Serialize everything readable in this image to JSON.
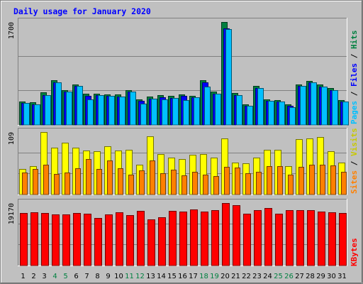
{
  "chart_data": {
    "type": "bar",
    "title": "Daily usage for January 2020",
    "categories": [
      "1",
      "2",
      "3",
      "4",
      "5",
      "6",
      "7",
      "8",
      "9",
      "10",
      "11",
      "12",
      "13",
      "14",
      "15",
      "16",
      "17",
      "18",
      "19",
      "20",
      "21",
      "22",
      "23",
      "24",
      "25",
      "26",
      "27",
      "28",
      "29",
      "30",
      "31"
    ],
    "weekend_days": [
      4,
      5,
      11,
      12,
      18,
      19,
      25,
      26
    ],
    "panels": [
      {
        "id": "hits",
        "ymax": 1700,
        "tick_label": "1700",
        "right_labels": [
          {
            "text": "Hits",
            "color": "#008040"
          },
          {
            "text": "Files",
            "color": "#0000ff"
          },
          {
            "text": "Pages",
            "color": "#00c0ff"
          }
        ],
        "series": [
          {
            "name": "Hits",
            "color": "#008040",
            "values": [
              390,
              375,
              535,
              735,
              580,
              670,
              510,
              520,
              500,
              505,
              580,
              420,
              465,
              490,
              480,
              500,
              480,
              735,
              555,
              1700,
              525,
              345,
              645,
              425,
              410,
              345,
              670,
              730,
              665,
              610,
              405
            ]
          },
          {
            "name": "Files",
            "color": "#0000ff",
            "values": [
              365,
              345,
              495,
              700,
              550,
              640,
              480,
              490,
              475,
              470,
              550,
              395,
              430,
              460,
              440,
              475,
              455,
              700,
              520,
              1600,
              490,
              320,
              610,
              400,
              385,
              320,
              640,
              700,
              630,
              575,
              385
            ]
          },
          {
            "name": "Pages",
            "color": "#00c0ff",
            "values": [
              365,
              345,
              495,
              700,
              550,
              640,
              420,
              490,
              475,
              470,
              550,
              355,
              430,
              420,
              440,
              410,
              455,
              635,
              520,
              1580,
              490,
              320,
              610,
              400,
              385,
              290,
              640,
              700,
              630,
              575,
              385
            ]
          }
        ]
      },
      {
        "id": "visits",
        "ymax": 109,
        "tick_label": "109",
        "right_labels": [
          {
            "text": "Visits",
            "color": "#c8c800"
          },
          {
            "text": "Sites",
            "color": "#ff8000"
          }
        ],
        "series": [
          {
            "name": "Visits",
            "color": "#ffff00",
            "values": [
              45,
              50,
              109,
              82,
              90,
              82,
              77,
              75,
              84,
              77,
              78,
              52,
              102,
              70,
              64,
              62,
              69,
              70,
              65,
              98,
              56,
              55,
              65,
              78,
              78,
              50,
              97,
              98,
              100,
              76,
              56
            ]
          },
          {
            "name": "Sites",
            "color": "#ff8000",
            "values": [
              38,
              44,
              52,
              36,
              38,
              46,
              62,
              44,
              60,
              46,
              35,
              42,
              60,
              37,
              43,
              33,
              40,
              35,
              32,
              48,
              47,
              37,
              40,
              50,
              50,
              35,
              48,
              52,
              52,
              51,
              40
            ]
          }
        ]
      },
      {
        "id": "kbytes",
        "ymax": 19170,
        "tick_label": "19170",
        "right_labels": [
          {
            "text": "KBytes",
            "color": "#ff0000"
          }
        ],
        "series": [
          {
            "name": "KBytes",
            "color": "#ff0000",
            "values": [
              16100,
              16400,
              16200,
              15600,
              15700,
              16200,
              16000,
              14600,
              15600,
              16300,
              15400,
              16800,
              14100,
              14800,
              16800,
              16500,
              17200,
              16500,
              16900,
              19170,
              18500,
              15900,
              17100,
              17700,
              15800,
              16900,
              17000,
              17100,
              16600,
              16400,
              16200
            ]
          }
        ]
      }
    ]
  }
}
